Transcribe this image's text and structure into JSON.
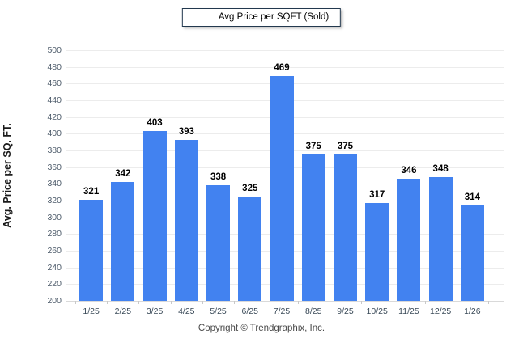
{
  "legend": {
    "label": "Avg Price per SQFT (Sold)"
  },
  "footer": {
    "copyright": "Copyright © Trendgraphix, Inc."
  },
  "colors": {
    "bar": "#4282F0",
    "gridline": "#ececec",
    "legend_border": "#22384e",
    "value_label": "#000000"
  },
  "chart_data": {
    "type": "bar",
    "title": "",
    "legend_entries": [
      "Avg Price per SQFT (Sold)"
    ],
    "legend_position": "top-center",
    "categories": [
      "1/25",
      "2/25",
      "3/25",
      "4/25",
      "5/25",
      "6/25",
      "7/25",
      "8/25",
      "9/25",
      "10/25",
      "11/25",
      "12/25",
      "1/26"
    ],
    "values": [
      321,
      342,
      403,
      393,
      338,
      325,
      469,
      375,
      375,
      317,
      346,
      348,
      314
    ],
    "xlabel": "",
    "ylabel": "Avg. Price per SQ. FT.",
    "ylim": [
      200,
      500
    ],
    "ytick_step": 20,
    "yticks": [
      200,
      220,
      240,
      260,
      280,
      300,
      320,
      340,
      360,
      380,
      400,
      420,
      440,
      460,
      480,
      500
    ],
    "grid": "horizontal",
    "bar_color": "#4282F0",
    "data_labels": true
  }
}
